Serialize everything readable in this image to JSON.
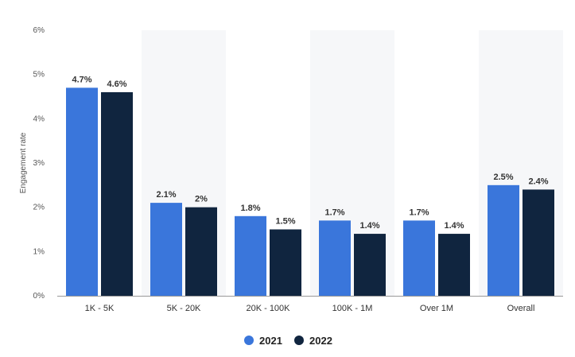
{
  "chart_data": {
    "type": "bar",
    "title": "",
    "xlabel": "",
    "ylabel": "Engagement rate",
    "ylim": [
      0,
      6
    ],
    "yticks": [
      "0%",
      "1%",
      "2%",
      "3%",
      "4%",
      "5%",
      "6%"
    ],
    "categories": [
      "1K - 5K",
      "5K - 20K",
      "20K - 100K",
      "100K - 1M",
      "Over 1M",
      "Overall"
    ],
    "series": [
      {
        "name": "2021",
        "color": "#3a76db",
        "values": [
          4.7,
          2.1,
          1.8,
          1.7,
          1.7,
          2.5
        ],
        "labels": [
          "4.7%",
          "2.1%",
          "1.8%",
          "1.7%",
          "1.7%",
          "2.5%"
        ]
      },
      {
        "name": "2022",
        "color": "#10253f",
        "values": [
          4.6,
          2.0,
          1.5,
          1.4,
          1.4,
          2.4
        ],
        "labels": [
          "4.6%",
          "2%",
          "1.5%",
          "1.4%",
          "1.4%",
          "2.4%"
        ]
      }
    ],
    "legend": "bottom-center",
    "grid": false,
    "alternating_band_color": "#f6f7f9"
  }
}
